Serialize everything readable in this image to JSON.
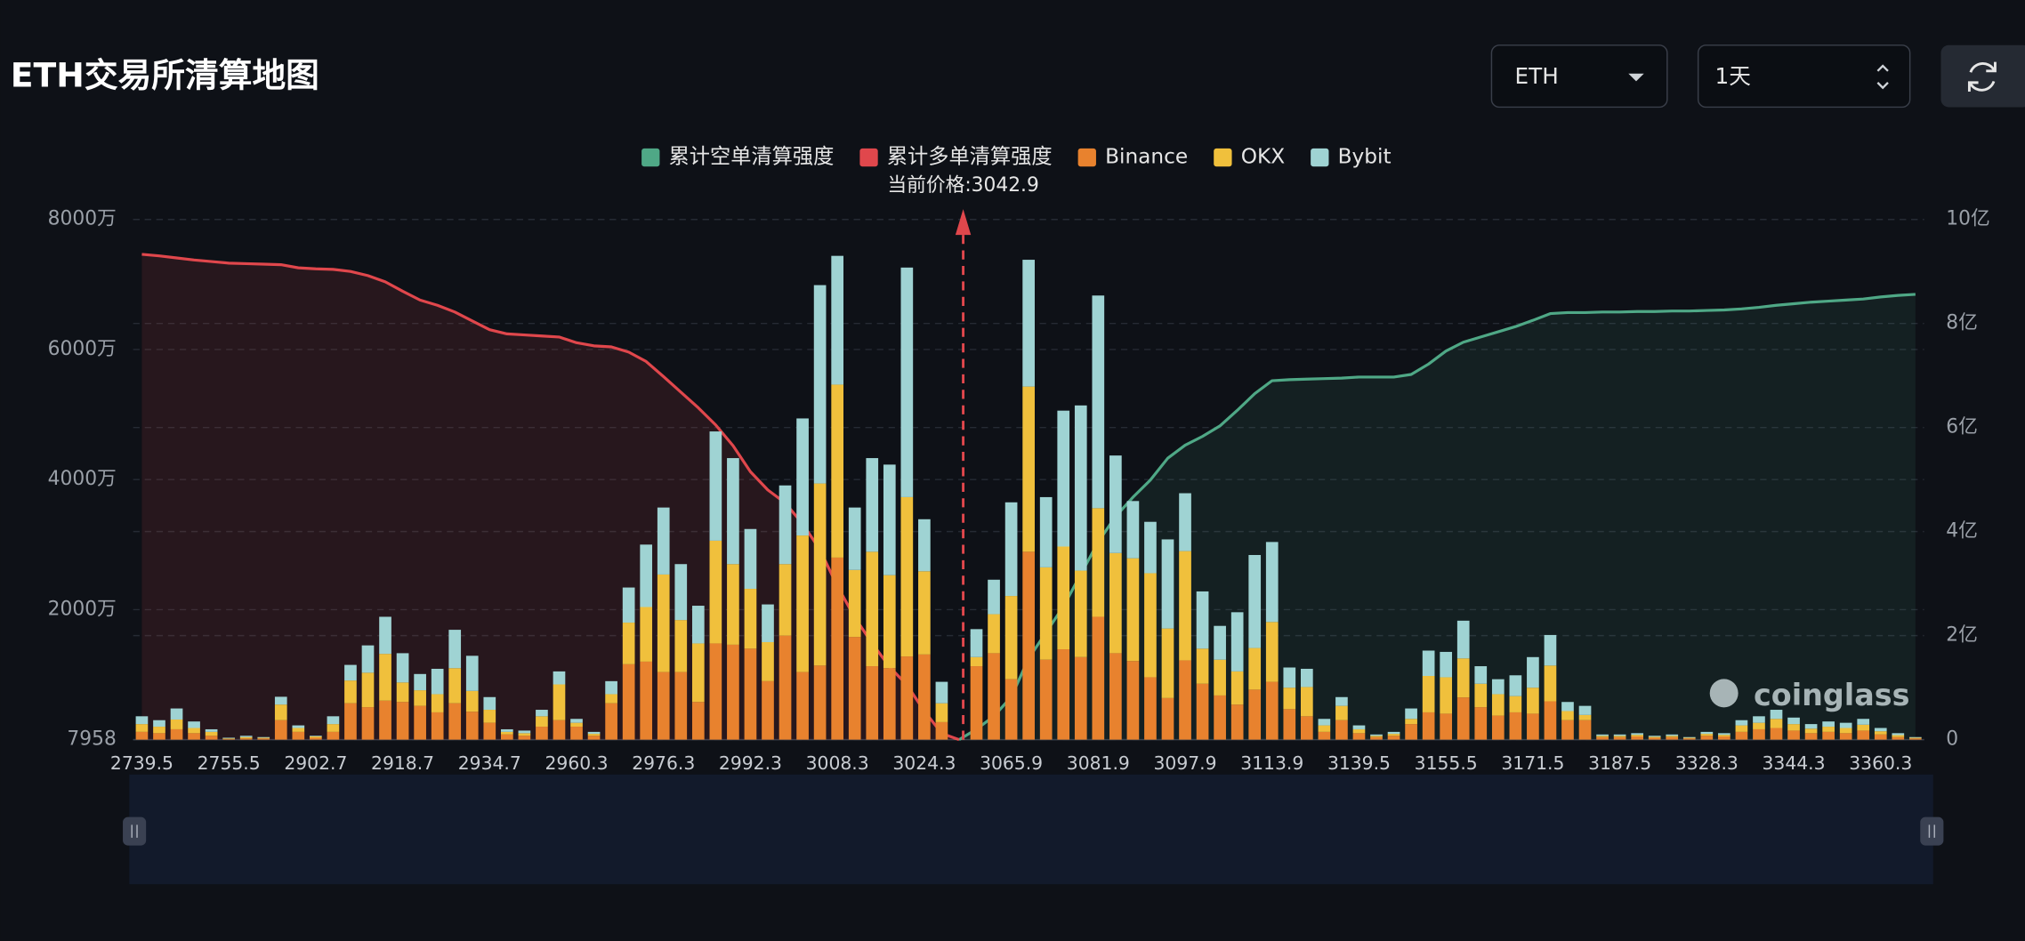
{
  "controls": {
    "symbol": "ETH",
    "period": "1天"
  },
  "chart_data": {
    "type": "bar",
    "stacked": true,
    "title": "ETH交易所清算地图",
    "watermark": "coinglass",
    "current_price": {
      "value": 3042.9,
      "label": "当前价格:3042.9"
    },
    "categories": [
      "2739.5",
      null,
      null,
      null,
      null,
      "2755.5",
      null,
      null,
      null,
      null,
      "2902.7",
      null,
      null,
      null,
      null,
      "2918.7",
      null,
      null,
      null,
      null,
      "2934.7",
      null,
      null,
      null,
      null,
      "2960.3",
      null,
      null,
      null,
      null,
      "2976.3",
      null,
      null,
      null,
      null,
      "2992.3",
      null,
      null,
      null,
      null,
      "3008.3",
      null,
      null,
      null,
      null,
      "3024.3",
      null,
      null,
      null,
      null,
      "3065.9",
      null,
      null,
      null,
      null,
      "3081.9",
      null,
      null,
      null,
      null,
      "3097.9",
      null,
      null,
      null,
      null,
      "3113.9",
      null,
      null,
      null,
      null,
      "3139.5",
      null,
      null,
      null,
      null,
      "3155.5",
      null,
      null,
      null,
      null,
      "3171.5",
      null,
      null,
      null,
      null,
      "3187.5",
      null,
      null,
      null,
      null,
      "3328.3",
      null,
      null,
      null,
      null,
      "3344.3",
      null,
      null,
      null,
      null,
      "3360.3",
      null,
      null
    ],
    "ylim": [
      0.7958,
      8000
    ],
    "yticks": [
      {
        "value": 0.7958,
        "label": "7958"
      },
      {
        "value": 2000,
        "label": "2000万"
      },
      {
        "value": 4000,
        "label": "4000万"
      },
      {
        "value": 6000,
        "label": "6000万"
      },
      {
        "value": 8000,
        "label": "8000万"
      }
    ],
    "y2lim": [
      0,
      10
    ],
    "y2ticks": [
      0,
      {
        "value": 2,
        "label": "2亿"
      },
      {
        "value": 4,
        "label": "4亿"
      },
      {
        "value": 6,
        "label": "6亿"
      },
      {
        "value": 8,
        "label": "8亿"
      },
      {
        "value": 10,
        "label": "10亿"
      }
    ],
    "grid": true,
    "series": [
      {
        "name": "累计空单清算强度",
        "type": "line",
        "axis": "y2",
        "color": "#4fa886",
        "fill": "rgba(79,168,134,0.10)",
        "values": [
          null,
          null,
          null,
          null,
          null,
          null,
          null,
          null,
          null,
          null,
          null,
          null,
          null,
          null,
          null,
          null,
          null,
          null,
          null,
          null,
          null,
          null,
          null,
          null,
          null,
          null,
          null,
          null,
          null,
          null,
          null,
          null,
          null,
          null,
          null,
          null,
          null,
          null,
          null,
          null,
          null,
          null,
          null,
          null,
          null,
          null,
          null,
          0,
          0.2,
          0.45,
          0.82,
          1.56,
          2.06,
          2.56,
          3.18,
          3.8,
          4.29,
          4.66,
          4.99,
          5.41,
          5.66,
          5.83,
          6.03,
          6.33,
          6.65,
          6.9,
          6.92,
          6.93,
          6.94,
          6.95,
          6.97,
          6.97,
          6.97,
          7.02,
          7.22,
          7.47,
          7.64,
          7.74,
          7.84,
          7.94,
          8.06,
          8.19,
          8.21,
          8.21,
          8.22,
          8.22,
          8.23,
          8.23,
          8.24,
          8.24,
          8.25,
          8.26,
          8.28,
          8.31,
          8.35,
          8.38,
          8.41,
          8.43,
          8.45,
          8.47,
          8.51,
          8.54,
          8.56
        ]
      },
      {
        "name": "累计多单清算强度",
        "type": "line",
        "axis": "y2",
        "color": "#e0474c",
        "fill": "rgba(224,71,76,0.12)",
        "values": [
          9.33,
          9.3,
          9.26,
          9.22,
          9.19,
          9.16,
          9.15,
          9.14,
          9.13,
          9.07,
          9.05,
          9.04,
          9,
          8.92,
          8.8,
          8.62,
          8.45,
          8.35,
          8.22,
          8.05,
          7.88,
          7.8,
          7.78,
          7.76,
          7.74,
          7.63,
          7.57,
          7.55,
          7.45,
          7.27,
          6.98,
          6.68,
          6.38,
          6.05,
          5.65,
          5.15,
          4.8,
          4.55,
          4.15,
          3.65,
          2.95,
          2.35,
          1.85,
          1.4,
          1.05,
          0.55,
          0.12,
          0,
          null,
          null,
          null,
          null,
          null,
          null,
          null,
          null,
          null,
          null,
          null,
          null,
          null,
          null,
          null,
          null,
          null,
          null,
          null,
          null,
          null,
          null,
          null,
          null,
          null,
          null,
          null,
          null,
          null,
          null,
          null,
          null,
          null,
          null,
          null,
          null,
          null,
          null,
          null,
          null,
          null,
          null,
          null,
          null,
          null,
          null,
          null,
          null,
          null,
          null,
          null,
          null,
          null,
          null,
          null
        ]
      },
      {
        "name": "Binance",
        "type": "bar",
        "color": "#e8822e",
        "values": [
          120,
          100,
          160,
          100,
          60,
          10,
          20,
          20,
          300,
          120,
          30,
          120,
          560,
          500,
          600,
          580,
          520,
          420,
          560,
          430,
          260,
          80,
          60,
          200,
          300,
          200,
          60,
          560,
          1160,
          1200,
          1040,
          1040,
          580,
          1480,
          1460,
          1400,
          900,
          1600,
          1040,
          1140,
          2800,
          1580,
          1130,
          1100,
          1280,
          1310,
          270,
          0,
          1130,
          1330,
          930,
          2890,
          1230,
          1390,
          1270,
          1890,
          1330,
          1210,
          960,
          640,
          1220,
          860,
          680,
          540,
          770,
          890,
          470,
          360,
          120,
          300,
          100,
          40,
          60,
          240,
          420,
          400,
          650,
          500,
          370,
          420,
          400,
          590,
          300,
          300,
          40,
          40,
          50,
          30,
          40,
          20,
          60,
          50,
          120,
          160,
          180,
          140,
          100,
          120,
          100,
          140,
          80,
          40,
          20
        ]
      },
      {
        "name": "OKX",
        "type": "bar",
        "color": "#f0c03c",
        "values": [
          120,
          100,
          150,
          80,
          60,
          10,
          20,
          10,
          240,
          60,
          20,
          120,
          350,
          530,
          720,
          300,
          240,
          280,
          540,
          320,
          200,
          40,
          40,
          160,
          550,
          60,
          30,
          140,
          640,
          840,
          1500,
          800,
          900,
          1580,
          1240,
          920,
          600,
          1100,
          2100,
          2800,
          2660,
          1030,
          1760,
          1430,
          2450,
          1280,
          290,
          0,
          140,
          600,
          1280,
          2540,
          1420,
          1580,
          1330,
          1670,
          1540,
          1580,
          1600,
          1070,
          1680,
          540,
          550,
          510,
          640,
          920,
          330,
          450,
          100,
          220,
          60,
          20,
          30,
          80,
          560,
          560,
          600,
          360,
          330,
          250,
          400,
          550,
          140,
          80,
          20,
          20,
          25,
          15,
          20,
          10,
          30,
          25,
          100,
          100,
          140,
          100,
          70,
          80,
          80,
          90,
          50,
          30,
          10
        ]
      },
      {
        "name": "Bybit",
        "type": "bar",
        "color": "#9fd3d3",
        "values": [
          120,
          100,
          170,
          100,
          40,
          10,
          20,
          10,
          120,
          40,
          10,
          120,
          240,
          420,
          570,
          450,
          250,
          390,
          590,
          540,
          195,
          40,
          40,
          100,
          200,
          60,
          30,
          200,
          540,
          960,
          1030,
          860,
          580,
          1680,
          1630,
          920,
          580,
          1210,
          1800,
          3050,
          1980,
          960,
          1440,
          1700,
          3530,
          800,
          330,
          0,
          430,
          530,
          1440,
          1950,
          1080,
          2090,
          2540,
          3270,
          1500,
          880,
          790,
          1370,
          890,
          880,
          520,
          910,
          1430,
          1230,
          310,
          280,
          100,
          135,
          60,
          20,
          30,
          160,
          390,
          390,
          580,
          270,
          230,
          320,
          470,
          470,
          140,
          140,
          20,
          20,
          25,
          15,
          20,
          10,
          30,
          25,
          80,
          100,
          140,
          100,
          70,
          80,
          80,
          90,
          50,
          30,
          10
        ]
      }
    ]
  }
}
